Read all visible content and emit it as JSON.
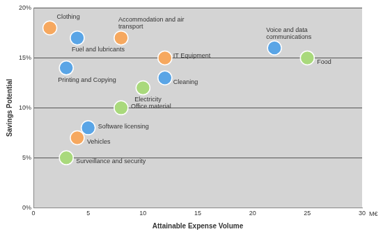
{
  "chart_data": {
    "type": "scatter",
    "xlabel": "Attainable Expense Volume",
    "x_unit_label": "M€",
    "ylabel": "Savings Potential",
    "point_labels": [
      "Clothing",
      "Fuel and lubricants",
      "Accommodation and air transport",
      "Printing and Copying",
      "IT Equipment",
      "Cleaning",
      "Electricity",
      "Office material",
      "Software licensing",
      "Vehicles",
      "Surveillance and security",
      "Voice and data communications",
      "Food"
    ],
    "x": [
      1.5,
      4,
      8,
      3,
      12,
      12,
      10,
      8,
      5,
      4,
      3,
      22,
      25
    ],
    "values": [
      18,
      17,
      17,
      14,
      15,
      13,
      12,
      10,
      8,
      7,
      5,
      16,
      15
    ],
    "colors": [
      "#f6a85f",
      "#5aa5e6",
      "#f6a85f",
      "#5aa5e6",
      "#f6a85f",
      "#5aa5e6",
      "#a9d97c",
      "#a9d97c",
      "#5aa5e6",
      "#f6a85f",
      "#a9d97c",
      "#5aa5e6",
      "#a9d97c"
    ],
    "marker": "circle",
    "xlim": [
      0,
      30
    ],
    "xticks": [
      0,
      5,
      10,
      15,
      20,
      25,
      30
    ],
    "ylim": [
      0,
      20
    ],
    "yticks": [
      {
        "value": 0,
        "label": "0%"
      },
      {
        "value": 5,
        "label": "5%"
      },
      {
        "value": 10,
        "label": "10%"
      },
      {
        "value": 15,
        "label": "15%"
      },
      {
        "value": 20,
        "label": "20%"
      }
    ],
    "grid": "y"
  }
}
